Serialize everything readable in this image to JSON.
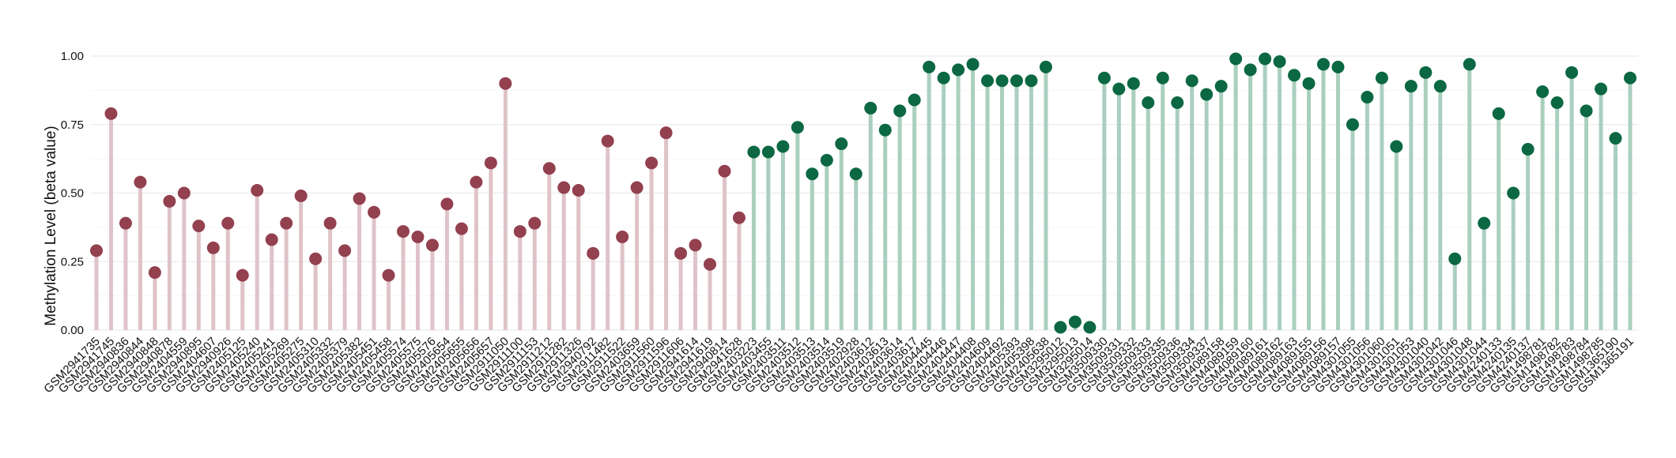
{
  "chart_data": {
    "type": "lollipop",
    "ylabel": "Methylation Level (beta value)",
    "ylim": [
      0,
      1
    ],
    "yticks": [
      "0.00",
      "0.25",
      "0.50",
      "0.75",
      "1.00"
    ],
    "grid": true,
    "colors": {
      "group1_point": "#93404f",
      "group1_stem": "#dfc3c9",
      "group2_point": "#0b6842",
      "group2_stem": "#aacfbf"
    },
    "points": [
      {
        "sample": "GSM2941735",
        "value": 0.29,
        "group": 1
      },
      {
        "sample": "GSM2941745",
        "value": 0.79,
        "group": 1
      },
      {
        "sample": "GSM2940836",
        "value": 0.39,
        "group": 1
      },
      {
        "sample": "GSM2940844",
        "value": 0.54,
        "group": 1
      },
      {
        "sample": "GSM2940848",
        "value": 0.21,
        "group": 1
      },
      {
        "sample": "GSM2940878",
        "value": 0.47,
        "group": 1
      },
      {
        "sample": "GSM2404559",
        "value": 0.5,
        "group": 1
      },
      {
        "sample": "GSM2940895",
        "value": 0.38,
        "group": 1
      },
      {
        "sample": "GSM2404607",
        "value": 0.3,
        "group": 1
      },
      {
        "sample": "GSM2940926",
        "value": 0.39,
        "group": 1
      },
      {
        "sample": "GSM2405125",
        "value": 0.2,
        "group": 1
      },
      {
        "sample": "GSM2405240",
        "value": 0.51,
        "group": 1
      },
      {
        "sample": "GSM2405241",
        "value": 0.33,
        "group": 1
      },
      {
        "sample": "GSM2405269",
        "value": 0.39,
        "group": 1
      },
      {
        "sample": "GSM2405275",
        "value": 0.49,
        "group": 1
      },
      {
        "sample": "GSM2405310",
        "value": 0.26,
        "group": 1
      },
      {
        "sample": "GSM2405332",
        "value": 0.39,
        "group": 1
      },
      {
        "sample": "GSM2405379",
        "value": 0.29,
        "group": 1
      },
      {
        "sample": "GSM2405382",
        "value": 0.48,
        "group": 1
      },
      {
        "sample": "GSM2405451",
        "value": 0.43,
        "group": 1
      },
      {
        "sample": "GSM2405458",
        "value": 0.2,
        "group": 1
      },
      {
        "sample": "GSM2405574",
        "value": 0.36,
        "group": 1
      },
      {
        "sample": "GSM2405575",
        "value": 0.34,
        "group": 1
      },
      {
        "sample": "GSM2405576",
        "value": 0.31,
        "group": 1
      },
      {
        "sample": "GSM2405654",
        "value": 0.46,
        "group": 1
      },
      {
        "sample": "GSM2405655",
        "value": 0.37,
        "group": 1
      },
      {
        "sample": "GSM2405656",
        "value": 0.54,
        "group": 1
      },
      {
        "sample": "GSM2405657",
        "value": 0.61,
        "group": 1
      },
      {
        "sample": "GSM2911050",
        "value": 0.9,
        "group": 1
      },
      {
        "sample": "GSM2911100",
        "value": 0.36,
        "group": 1
      },
      {
        "sample": "GSM2911153",
        "value": 0.39,
        "group": 1
      },
      {
        "sample": "GSM2911212",
        "value": 0.59,
        "group": 1
      },
      {
        "sample": "GSM2911282",
        "value": 0.52,
        "group": 1
      },
      {
        "sample": "GSM2911326",
        "value": 0.51,
        "group": 1
      },
      {
        "sample": "GSM2940792",
        "value": 0.28,
        "group": 1
      },
      {
        "sample": "GSM2911482",
        "value": 0.69,
        "group": 1
      },
      {
        "sample": "GSM2911522",
        "value": 0.34,
        "group": 1
      },
      {
        "sample": "GSM2403659",
        "value": 0.52,
        "group": 1
      },
      {
        "sample": "GSM2911560",
        "value": 0.61,
        "group": 1
      },
      {
        "sample": "GSM2911596",
        "value": 0.72,
        "group": 1
      },
      {
        "sample": "GSM2911606",
        "value": 0.28,
        "group": 1
      },
      {
        "sample": "GSM2941614",
        "value": 0.31,
        "group": 1
      },
      {
        "sample": "GSM2941619",
        "value": 0.24,
        "group": 1
      },
      {
        "sample": "GSM2940814",
        "value": 0.58,
        "group": 1
      },
      {
        "sample": "GSM2941628",
        "value": 0.41,
        "group": 1
      },
      {
        "sample": "GSM2403223",
        "value": 0.65,
        "group": 2
      },
      {
        "sample": "GSM2403455",
        "value": 0.65,
        "group": 2
      },
      {
        "sample": "GSM2403511",
        "value": 0.67,
        "group": 2
      },
      {
        "sample": "GSM2403512",
        "value": 0.74,
        "group": 2
      },
      {
        "sample": "GSM2403513",
        "value": 0.57,
        "group": 2
      },
      {
        "sample": "GSM2403514",
        "value": 0.62,
        "group": 2
      },
      {
        "sample": "GSM2403519",
        "value": 0.68,
        "group": 2
      },
      {
        "sample": "GSM2402928",
        "value": 0.57,
        "group": 2
      },
      {
        "sample": "GSM2403612",
        "value": 0.81,
        "group": 2
      },
      {
        "sample": "GSM2403613",
        "value": 0.73,
        "group": 2
      },
      {
        "sample": "GSM2403614",
        "value": 0.8,
        "group": 2
      },
      {
        "sample": "GSM2403617",
        "value": 0.84,
        "group": 2
      },
      {
        "sample": "GSM2404445",
        "value": 0.96,
        "group": 2
      },
      {
        "sample": "GSM2404446",
        "value": 0.92,
        "group": 2
      },
      {
        "sample": "GSM2404447",
        "value": 0.95,
        "group": 2
      },
      {
        "sample": "GSM2404408",
        "value": 0.97,
        "group": 2
      },
      {
        "sample": "GSM2404609",
        "value": 0.91,
        "group": 2
      },
      {
        "sample": "GSM2404492",
        "value": 0.91,
        "group": 2
      },
      {
        "sample": "GSM2405393",
        "value": 0.91,
        "group": 2
      },
      {
        "sample": "GSM2405398",
        "value": 0.91,
        "group": 2
      },
      {
        "sample": "GSM2405638",
        "value": 0.96,
        "group": 2
      },
      {
        "sample": "GSM3295012",
        "value": 0.01,
        "group": 2
      },
      {
        "sample": "GSM3295013",
        "value": 0.03,
        "group": 2
      },
      {
        "sample": "GSM3295014",
        "value": 0.01,
        "group": 2
      },
      {
        "sample": "GSM3509330",
        "value": 0.92,
        "group": 2
      },
      {
        "sample": "GSM3509331",
        "value": 0.88,
        "group": 2
      },
      {
        "sample": "GSM3509332",
        "value": 0.9,
        "group": 2
      },
      {
        "sample": "GSM3509333",
        "value": 0.83,
        "group": 2
      },
      {
        "sample": "GSM3509335",
        "value": 0.92,
        "group": 2
      },
      {
        "sample": "GSM3509336",
        "value": 0.83,
        "group": 2
      },
      {
        "sample": "GSM3509334",
        "value": 0.91,
        "group": 2
      },
      {
        "sample": "GSM3509337",
        "value": 0.86,
        "group": 2
      },
      {
        "sample": "GSM4089158",
        "value": 0.89,
        "group": 2
      },
      {
        "sample": "GSM4089159",
        "value": 0.99,
        "group": 2
      },
      {
        "sample": "GSM4089160",
        "value": 0.95,
        "group": 2
      },
      {
        "sample": "GSM4089161",
        "value": 0.99,
        "group": 2
      },
      {
        "sample": "GSM4089162",
        "value": 0.98,
        "group": 2
      },
      {
        "sample": "GSM4089163",
        "value": 0.93,
        "group": 2
      },
      {
        "sample": "GSM4089155",
        "value": 0.9,
        "group": 2
      },
      {
        "sample": "GSM4089156",
        "value": 0.97,
        "group": 2
      },
      {
        "sample": "GSM4089157",
        "value": 0.96,
        "group": 2
      },
      {
        "sample": "GSM4301055",
        "value": 0.75,
        "group": 2
      },
      {
        "sample": "GSM4301056",
        "value": 0.85,
        "group": 2
      },
      {
        "sample": "GSM4301060",
        "value": 0.92,
        "group": 2
      },
      {
        "sample": "GSM4301051",
        "value": 0.67,
        "group": 2
      },
      {
        "sample": "GSM4301053",
        "value": 0.89,
        "group": 2
      },
      {
        "sample": "GSM4301040",
        "value": 0.94,
        "group": 2
      },
      {
        "sample": "GSM4301042",
        "value": 0.89,
        "group": 2
      },
      {
        "sample": "GSM4301046",
        "value": 0.26,
        "group": 2
      },
      {
        "sample": "GSM4301048",
        "value": 0.97,
        "group": 2
      },
      {
        "sample": "GSM4301044",
        "value": 0.39,
        "group": 2
      },
      {
        "sample": "GSM4240133",
        "value": 0.79,
        "group": 2
      },
      {
        "sample": "GSM4240135",
        "value": 0.5,
        "group": 2
      },
      {
        "sample": "GSM4240137",
        "value": 0.66,
        "group": 2
      },
      {
        "sample": "GSM1498781",
        "value": 0.87,
        "group": 2
      },
      {
        "sample": "GSM1498782",
        "value": 0.83,
        "group": 2
      },
      {
        "sample": "GSM1498783",
        "value": 0.94,
        "group": 2
      },
      {
        "sample": "GSM1498784",
        "value": 0.8,
        "group": 2
      },
      {
        "sample": "GSM1498785",
        "value": 0.88,
        "group": 2
      },
      {
        "sample": "GSM1365190",
        "value": 0.7,
        "group": 2
      },
      {
        "sample": "GSM1365191",
        "value": 0.92,
        "group": 2
      }
    ]
  }
}
